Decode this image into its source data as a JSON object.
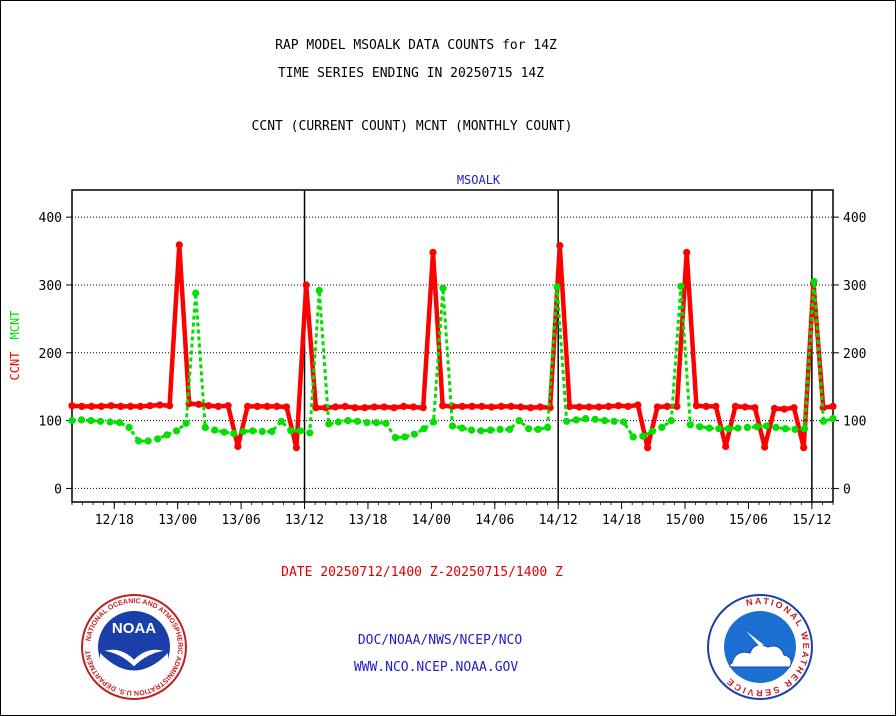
{
  "header": {
    "line1": "RAP MODEL MSOALK DATA COUNTS for 14Z",
    "line2": "TIME SERIES ENDING IN 20250715 14Z",
    "line3": "CCNT (CURRENT COUNT) MCNT (MONTHLY COUNT)"
  },
  "footer": {
    "date_range": "DATE 20250712/1400 Z-20250715/1400 Z",
    "org": "DOC/NOAA/NWS/NCEP/NCO",
    "url": "WWW.NCO.NCEP.NOAA.GOV"
  },
  "logos": {
    "left": "NOAA",
    "left_ring": "NATIONAL OCEANIC AND ATMOSPHERIC ADMINISTRATION U.S. DEPARTMENT OF COMMERCE",
    "right_ring": "NATIONAL WEATHER SERVICE"
  },
  "colors": {
    "ccnt": "#ff0000",
    "mcnt": "#00e000",
    "text_blue": "#2020c0",
    "date_red": "#e00000"
  },
  "chart_data": {
    "type": "line",
    "title": "MSOALK",
    "ylabel_ccnt": "CCNT",
    "ylabel_mcnt": "MCNT",
    "ylim": [
      -20,
      440
    ],
    "yticks": [
      0,
      100,
      200,
      300,
      400
    ],
    "xlim_hours": [
      0,
      72
    ],
    "xticks": [
      {
        "h": 4,
        "label": "12/18"
      },
      {
        "h": 10,
        "label": "13/00"
      },
      {
        "h": 16,
        "label": "13/06"
      },
      {
        "h": 22,
        "label": "13/12"
      },
      {
        "h": 28,
        "label": "13/18"
      },
      {
        "h": 34,
        "label": "14/00"
      },
      {
        "h": 40,
        "label": "14/06"
      },
      {
        "h": 46,
        "label": "14/12"
      },
      {
        "h": 52,
        "label": "14/18"
      },
      {
        "h": 58,
        "label": "15/00"
      },
      {
        "h": 64,
        "label": "15/06"
      },
      {
        "h": 70,
        "label": "15/12"
      }
    ],
    "day_boundaries_hours": [
      22,
      46,
      70
    ],
    "grid": true,
    "series": [
      {
        "name": "CCNT",
        "values": [
          122,
          121,
          121,
          121,
          122,
          121,
          121,
          121,
          122,
          123,
          122,
          359,
          125,
          124,
          122,
          121,
          122,
          62,
          121,
          121,
          121,
          121,
          120,
          60,
          300,
          119,
          119,
          120,
          121,
          119,
          119,
          120,
          120,
          119,
          121,
          120,
          119,
          348,
          122,
          121,
          121,
          121,
          121,
          120,
          121,
          121,
          120,
          119,
          120,
          119,
          358,
          121,
          120,
          120,
          120,
          121,
          122,
          121,
          123,
          60,
          120,
          121,
          121,
          348,
          122,
          121,
          121,
          62,
          121,
          120,
          119,
          61,
          118,
          117,
          119,
          60,
          303,
          119,
          121
        ]
      },
      {
        "name": "MCNT",
        "values": [
          100,
          101,
          100,
          99,
          98,
          97,
          90,
          70,
          70,
          73,
          79,
          85,
          96,
          288,
          90,
          86,
          83,
          81,
          84,
          85,
          84,
          84,
          99,
          85,
          85,
          82,
          292,
          95,
          98,
          100,
          99,
          97,
          97,
          96,
          75,
          76,
          80,
          88,
          98,
          295,
          92,
          89,
          86,
          85,
          86,
          87,
          87,
          100,
          88,
          87,
          90,
          297,
          99,
          101,
          103,
          102,
          100,
          99,
          98,
          76,
          77,
          84,
          90,
          100,
          298,
          94,
          91,
          89,
          88,
          88,
          89,
          90,
          91,
          92,
          90,
          88,
          87,
          88,
          305,
          99,
          103
        ]
      }
    ]
  }
}
